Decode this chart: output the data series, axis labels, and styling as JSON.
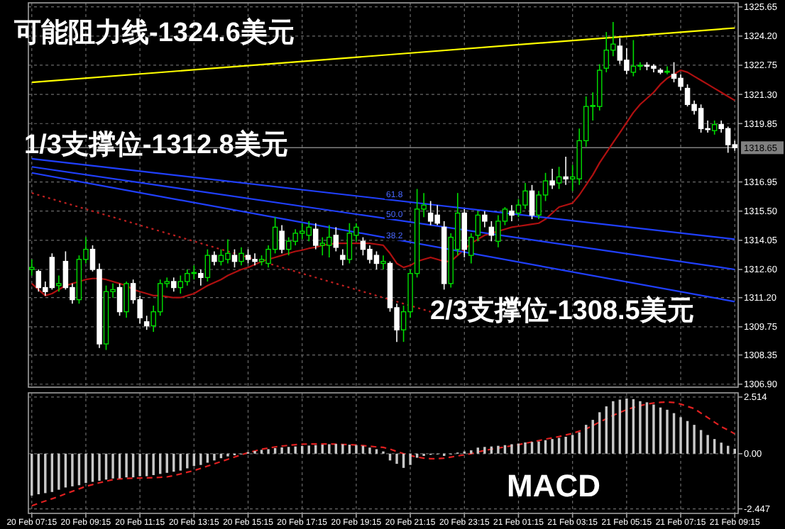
{
  "chart_data": [
    {
      "type": "candlestick",
      "tick_labels": "y",
      "grid": true,
      "colors": [
        "#00dd00",
        "#ffffff",
        "#ffffff",
        "#ffffff",
        "#00dd00",
        "#ffffff",
        "#ffffff",
        "#00dd00",
        "#00dd00",
        "#ffffff",
        "#ffffff",
        "#00dd00",
        "#00dd00",
        "#ffffff",
        "#00dd00",
        "#ffffff",
        "#ffffff",
        "#ffffff",
        "#00dd00",
        "#00dd00",
        "#00dd00",
        "#ffffff",
        "#00dd00",
        "#00dd00",
        "#00dd00",
        "#ffffff",
        "#00dd00",
        "#ffffff",
        "#00dd00",
        "#00dd00",
        "#ffffff",
        "#00dd00",
        "#ffffff",
        "#ffffff",
        "#00dd00",
        "#00dd00",
        "#00dd00",
        "#ffffff",
        "#00dd00",
        "#00dd00",
        "#00dd00",
        "#00dd00",
        "#ffffff",
        "#00dd00",
        "#00dd00",
        "#ffffff",
        "#ffffff",
        "#00dd00",
        "#00dd00",
        "#ffffff",
        "#ffffff",
        "#ffffff",
        "#00dd00",
        "#ffffff",
        "#ffffff",
        "#00dd00",
        "#00dd00",
        "#00dd00",
        "#00dd00",
        "#ffffff",
        "#ffffff",
        "#ffffff",
        "#00dd00",
        "#00dd00",
        "#ffffff",
        "#00dd00",
        "#00dd00",
        "#ffffff",
        "#ffffff",
        "#00dd00",
        "#00dd00",
        "#ffffff",
        "#00dd00",
        "#00dd00",
        "#ffffff",
        "#00dd00",
        "#00dd00",
        "#ffffff",
        "#00dd00",
        "#ffffff",
        "#00dd00",
        "#00dd00",
        "#00dd00",
        "#00dd00",
        "#00dd00",
        "#00dd00",
        "#00dd00",
        "#ffffff",
        "#ffffff",
        "#00dd00",
        "#00dd00",
        "#ffffff",
        "#ffffff",
        "#ffffff",
        "#00dd00",
        "#ffffff",
        "#ffffff",
        "#ffffff",
        "#ffffff",
        "#ffffff",
        "#ffffff",
        "#00dd00",
        "#ffffff",
        "#ffffff",
        "#ffffff"
      ],
      "categories": [
        null,
        null,
        null,
        null,
        null,
        null,
        null,
        null,
        null,
        null,
        null,
        null,
        null,
        null,
        null,
        null,
        null,
        null,
        null,
        null,
        null,
        null,
        null,
        null,
        null,
        null,
        null,
        null,
        null,
        null,
        null,
        null,
        null,
        null,
        null,
        null,
        null,
        null,
        null,
        null,
        null,
        null,
        null,
        null,
        null,
        null,
        null,
        null,
        null,
        null,
        null,
        null,
        null,
        null,
        null,
        null,
        null,
        null,
        null,
        null,
        null,
        null,
        null,
        null,
        null,
        null,
        null,
        null,
        null,
        null,
        null,
        null,
        null,
        null,
        null,
        null,
        null,
        null,
        null,
        null,
        null,
        null,
        null,
        null,
        null,
        null,
        null,
        null,
        null,
        null,
        null,
        null,
        null,
        null,
        null,
        null,
        null,
        null,
        null,
        null,
        null,
        null,
        null,
        null,
        null
      ],
      "ohlc": [
        [
          1312.6,
          1313.1,
          1312.3,
          1312.7
        ],
        [
          1312.5,
          1312.6,
          1311.5,
          1311.7
        ],
        [
          1311.7,
          1312.0,
          1311.3,
          1311.5
        ],
        [
          1313.2,
          1313.4,
          1311.6,
          1311.7
        ],
        [
          1311.8,
          1312.3,
          1311.5,
          1311.9
        ],
        [
          1313.0,
          1313.5,
          1311.6,
          1311.7
        ],
        [
          1311.7,
          1311.9,
          1310.9,
          1311.1
        ],
        [
          1311.1,
          1313.3,
          1310.9,
          1313.1
        ],
        [
          1313.1,
          1314.2,
          1312.9,
          1313.6
        ],
        [
          1313.6,
          1313.8,
          1312.5,
          1312.6
        ],
        [
          1312.6,
          1312.9,
          1308.7,
          1308.9
        ],
        [
          1308.9,
          1311.8,
          1308.6,
          1311.5
        ],
        [
          1311.5,
          1311.9,
          1311.2,
          1311.6
        ],
        [
          1311.7,
          1311.9,
          1310.3,
          1310.5
        ],
        [
          1310.5,
          1312.0,
          1310.2,
          1311.9
        ],
        [
          1311.9,
          1312.1,
          1310.9,
          1311.1
        ],
        [
          1311.1,
          1311.3,
          1309.9,
          1310.2
        ],
        [
          1310.0,
          1310.3,
          1309.6,
          1309.8
        ],
        [
          1309.8,
          1310.8,
          1309.5,
          1310.5
        ],
        [
          1310.5,
          1312.1,
          1310.3,
          1311.9
        ],
        [
          1311.9,
          1312.2,
          1311.7,
          1312.0
        ],
        [
          1312.0,
          1312.2,
          1311.5,
          1311.7
        ],
        [
          1311.7,
          1312.3,
          1311.4,
          1312.0
        ],
        [
          1312.0,
          1312.6,
          1311.8,
          1312.4
        ],
        [
          1312.4,
          1312.8,
          1312.1,
          1312.45
        ],
        [
          1312.4,
          1312.6,
          1311.8,
          1312.2
        ],
        [
          1312.2,
          1313.6,
          1312.0,
          1313.3
        ],
        [
          1313.3,
          1313.5,
          1312.8,
          1313.0
        ],
        [
          1313.0,
          1313.6,
          1312.8,
          1313.3
        ],
        [
          1313.1,
          1314.1,
          1312.9,
          1313.4
        ],
        [
          1313.3,
          1313.6,
          1312.7,
          1313.0
        ],
        [
          1313.0,
          1313.7,
          1312.8,
          1313.4
        ],
        [
          1313.3,
          1313.6,
          1312.9,
          1313.1
        ],
        [
          1313.1,
          1313.4,
          1312.8,
          1313.0
        ],
        [
          1313.0,
          1313.3,
          1312.8,
          1313.1
        ],
        [
          1312.9,
          1313.8,
          1312.7,
          1313.6
        ],
        [
          1313.6,
          1315.2,
          1313.4,
          1314.7
        ],
        [
          1314.5,
          1314.8,
          1313.4,
          1313.6
        ],
        [
          1313.6,
          1314.2,
          1313.3,
          1314.0
        ],
        [
          1314.0,
          1314.6,
          1313.8,
          1314.4
        ],
        [
          1314.4,
          1314.9,
          1314.1,
          1314.5
        ],
        [
          1314.3,
          1315.0,
          1314.0,
          1314.7
        ],
        [
          1314.6,
          1314.9,
          1313.6,
          1313.8
        ],
        [
          1313.8,
          1314.2,
          1313.3,
          1313.9
        ],
        [
          1313.8,
          1314.8,
          1313.2,
          1314.2
        ],
        [
          1314.3,
          1314.7,
          1313.5,
          1313.7
        ],
        [
          1313.3,
          1313.6,
          1312.8,
          1313.1
        ],
        [
          1313.1,
          1314.9,
          1312.9,
          1314.4
        ],
        [
          1314.3,
          1314.9,
          1314.0,
          1314.7
        ],
        [
          1314.0,
          1314.2,
          1313.3,
          1313.6
        ],
        [
          1313.6,
          1313.8,
          1312.9,
          1313.1
        ],
        [
          1313.3,
          1313.5,
          1312.6,
          1312.9
        ],
        [
          1312.9,
          1313.3,
          1312.6,
          1313.0
        ],
        [
          1312.9,
          1313.0,
          1310.5,
          1310.7
        ],
        [
          1310.7,
          1310.9,
          1309.0,
          1309.6
        ],
        [
          1309.6,
          1310.8,
          1309.0,
          1310.5
        ],
        [
          1310.5,
          1312.6,
          1310.2,
          1312.4
        ],
        [
          1312.4,
          1316.6,
          1312.2,
          1315.6
        ],
        [
          1315.6,
          1316.4,
          1315.2,
          1315.8
        ],
        [
          1315.4,
          1316.0,
          1314.8,
          1315.0
        ],
        [
          1315.3,
          1315.8,
          1314.8,
          1314.9
        ],
        [
          1314.7,
          1315.0,
          1311.6,
          1311.9
        ],
        [
          1311.9,
          1314.4,
          1311.7,
          1314.2
        ],
        [
          1313.6,
          1316.4,
          1313.3,
          1315.4
        ],
        [
          1315.4,
          1315.6,
          1313.2,
          1313.6
        ],
        [
          1313.3,
          1314.4,
          1312.9,
          1314.2
        ],
        [
          1314.3,
          1315.5,
          1314.0,
          1315.3
        ],
        [
          1315.3,
          1315.5,
          1314.7,
          1315.0
        ],
        [
          1314.7,
          1315.0,
          1314.0,
          1314.3
        ],
        [
          1314.0,
          1315.3,
          1313.7,
          1315.0
        ],
        [
          1315.0,
          1315.7,
          1314.8,
          1315.6
        ],
        [
          1315.5,
          1315.8,
          1315.0,
          1315.3
        ],
        [
          1315.4,
          1316.1,
          1315.2,
          1315.8
        ],
        [
          1315.8,
          1316.9,
          1315.6,
          1316.5
        ],
        [
          1316.5,
          1316.8,
          1315.1,
          1315.3
        ],
        [
          1315.3,
          1316.5,
          1315.1,
          1316.3
        ],
        [
          1316.3,
          1317.4,
          1316.0,
          1317.0
        ],
        [
          1317.0,
          1317.6,
          1316.6,
          1316.8
        ],
        [
          1316.9,
          1317.7,
          1316.6,
          1317.2
        ],
        [
          1317.2,
          1318.2,
          1316.8,
          1317.1
        ],
        [
          1317.1,
          1317.8,
          1316.5,
          1317.2
        ],
        [
          1317.1,
          1319.6,
          1316.8,
          1319.0
        ],
        [
          1319.0,
          1321.2,
          1318.7,
          1320.7
        ],
        [
          1320.7,
          1321.4,
          1320.0,
          1320.75
        ],
        [
          1320.7,
          1322.8,
          1320.5,
          1322.5
        ],
        [
          1322.6,
          1324.4,
          1322.4,
          1323.5
        ],
        [
          1323.5,
          1324.9,
          1323.2,
          1323.8
        ],
        [
          1323.7,
          1324.1,
          1322.8,
          1323.0
        ],
        [
          1323.0,
          1323.6,
          1322.3,
          1322.5
        ],
        [
          1322.4,
          1324.0,
          1322.2,
          1322.7
        ],
        [
          1322.7,
          1322.9,
          1322.5,
          1322.75
        ],
        [
          1322.75,
          1322.9,
          1322.5,
          1322.7
        ],
        [
          1322.7,
          1322.8,
          1322.4,
          1322.6
        ],
        [
          1322.5,
          1322.6,
          1322.3,
          1322.4
        ],
        [
          1322.4,
          1322.7,
          1322.3,
          1322.45
        ],
        [
          1322.3,
          1322.9,
          1321.9,
          1322.1
        ],
        [
          1322.1,
          1322.3,
          1321.5,
          1321.7
        ],
        [
          1321.6,
          1321.8,
          1320.7,
          1320.8
        ],
        [
          1320.8,
          1321.0,
          1320.3,
          1320.5
        ],
        [
          1320.6,
          1320.8,
          1319.4,
          1319.6
        ],
        [
          1319.6,
          1320.0,
          1319.4,
          1319.55
        ],
        [
          1319.5,
          1320.0,
          1319.3,
          1319.8
        ],
        [
          1319.8,
          1320.0,
          1319.4,
          1319.6
        ],
        [
          1319.6,
          1319.7,
          1318.4,
          1318.8
        ],
        [
          1318.8,
          1319.0,
          1318.5,
          1318.65
        ]
      ],
      "series": [
        {
          "type": "line",
          "color": "#b01010",
          "values": [
            1311.9,
            1311.6,
            1311.3,
            1311.4,
            1311.6,
            1311.8,
            1311.9,
            1312.0,
            1312.1,
            1312.15,
            1312.15,
            1312.1,
            1312.0,
            1311.9,
            1311.8,
            1311.6,
            1311.5,
            1311.4,
            1311.3,
            1311.3,
            1311.25,
            1311.2,
            1311.2,
            1311.3,
            1311.4,
            1311.6,
            1311.8,
            1311.95,
            1312.1,
            1312.3,
            1312.45,
            1312.6,
            1312.7,
            1312.85,
            1313.0,
            1313.1,
            1313.2,
            1313.3,
            1313.4,
            1313.5,
            1313.56,
            1313.65,
            1313.7,
            1313.8,
            1313.85,
            1313.9,
            1313.9,
            1313.9,
            1313.9,
            1313.9,
            1313.9,
            1313.85,
            1313.8,
            1313.4,
            1312.9,
            1312.7,
            1312.8,
            1313.0,
            1313.1,
            1313.2,
            1313.1,
            1313.0,
            1313.0,
            1313.3,
            1313.6,
            1313.9,
            1314.1,
            1314.3,
            1314.4,
            1314.5,
            1314.6,
            1314.7,
            1314.75,
            1314.8,
            1314.85,
            1314.9,
            1315.1,
            1315.4,
            1315.7,
            1315.8,
            1315.9,
            1316.3,
            1316.8,
            1317.3,
            1317.9,
            1318.4,
            1318.9,
            1319.4,
            1319.9,
            1320.4,
            1320.8,
            1321.1,
            1321.4,
            1321.8,
            1322.1,
            1322.3,
            1322.5,
            1322.4,
            1322.2,
            1322.0,
            1321.8,
            1321.6,
            1321.4,
            1321.2,
            1321.0
          ]
        },
        {
          "type": "line",
          "color": "#ffff00",
          "values": [
            1321.9,
            null,
            null,
            null,
            null,
            null,
            null,
            null,
            null,
            null,
            null,
            null,
            null,
            null,
            null,
            null,
            null,
            null,
            null,
            null,
            null,
            null,
            null,
            null,
            null,
            null,
            null,
            null,
            null,
            null,
            null,
            null,
            null,
            null,
            null,
            null,
            null,
            null,
            null,
            null,
            null,
            null,
            null,
            null,
            null,
            null,
            null,
            null,
            null,
            null,
            null,
            null,
            null,
            null,
            null,
            null,
            null,
            null,
            null,
            null,
            null,
            null,
            null,
            null,
            null,
            null,
            null,
            null,
            null,
            null,
            null,
            null,
            null,
            null,
            null,
            null,
            null,
            null,
            null,
            null,
            null,
            null,
            null,
            null,
            null,
            null,
            null,
            null,
            null,
            null,
            null,
            null,
            null,
            null,
            null,
            null,
            null,
            null,
            null,
            null,
            null,
            null,
            null,
            null,
            1324.6
          ]
        },
        {
          "type": "line",
          "color": "#2040ff",
          "values": [
            1318.1,
            null,
            null,
            null,
            null,
            null,
            null,
            null,
            null,
            null,
            null,
            null,
            null,
            null,
            null,
            null,
            null,
            null,
            null,
            null,
            null,
            null,
            null,
            null,
            null,
            null,
            null,
            null,
            null,
            null,
            null,
            null,
            null,
            null,
            null,
            null,
            null,
            null,
            null,
            null,
            null,
            null,
            null,
            null,
            null,
            null,
            null,
            null,
            null,
            null,
            null,
            null,
            null,
            null,
            null,
            null,
            null,
            null,
            null,
            null,
            null,
            null,
            null,
            null,
            null,
            null,
            null,
            null,
            null,
            null,
            null,
            null,
            null,
            null,
            null,
            null,
            null,
            null,
            null,
            null,
            null,
            null,
            null,
            null,
            null,
            null,
            null,
            null,
            null,
            null,
            null,
            null,
            null,
            null,
            null,
            null,
            null,
            null,
            null,
            null,
            null,
            null,
            null,
            null,
            1314.1
          ]
        },
        {
          "type": "line",
          "color": "#2040ff",
          "values": [
            1317.7,
            null,
            null,
            null,
            null,
            null,
            null,
            null,
            null,
            null,
            null,
            null,
            null,
            null,
            null,
            null,
            null,
            null,
            null,
            null,
            null,
            null,
            null,
            null,
            null,
            null,
            null,
            null,
            null,
            null,
            null,
            null,
            null,
            null,
            null,
            null,
            null,
            null,
            null,
            null,
            null,
            null,
            null,
            null,
            null,
            null,
            null,
            null,
            null,
            null,
            null,
            null,
            null,
            null,
            null,
            null,
            null,
            null,
            null,
            null,
            null,
            null,
            null,
            null,
            null,
            null,
            null,
            null,
            null,
            null,
            null,
            null,
            null,
            null,
            null,
            null,
            null,
            null,
            null,
            null,
            null,
            null,
            null,
            null,
            null,
            null,
            null,
            null,
            null,
            null,
            null,
            null,
            null,
            null,
            null,
            null,
            null,
            null,
            null,
            null,
            null,
            null,
            null,
            null,
            1312.6
          ]
        },
        {
          "type": "line",
          "color": "#2040ff",
          "values": [
            1317.4,
            null,
            null,
            null,
            null,
            null,
            null,
            null,
            null,
            null,
            null,
            null,
            null,
            null,
            null,
            null,
            null,
            null,
            null,
            null,
            null,
            null,
            null,
            null,
            null,
            null,
            null,
            null,
            null,
            null,
            null,
            null,
            null,
            null,
            null,
            null,
            null,
            null,
            null,
            null,
            null,
            null,
            null,
            null,
            null,
            null,
            null,
            null,
            null,
            null,
            null,
            null,
            null,
            null,
            null,
            null,
            null,
            null,
            null,
            null,
            null,
            null,
            null,
            null,
            null,
            null,
            null,
            null,
            null,
            null,
            null,
            null,
            null,
            null,
            null,
            null,
            null,
            null,
            null,
            null,
            null,
            null,
            null,
            null,
            null,
            null,
            null,
            null,
            null,
            null,
            null,
            null,
            null,
            null,
            null,
            null,
            null,
            null,
            null,
            null,
            null,
            null,
            null,
            null,
            1311.0
          ]
        },
        {
          "type": "line",
          "color": "#c02020",
          "line_style": "dotted",
          "values": [
            1316.4,
            null,
            null,
            null,
            null,
            null,
            null,
            null,
            null,
            null,
            null,
            null,
            null,
            null,
            null,
            null,
            null,
            null,
            null,
            null,
            null,
            null,
            null,
            null,
            null,
            null,
            null,
            null,
            null,
            null,
            null,
            null,
            null,
            null,
            null,
            null,
            null,
            null,
            null,
            null,
            null,
            null,
            null,
            null,
            null,
            null,
            null,
            null,
            null,
            null,
            null,
            null,
            null,
            null,
            null,
            null,
            null,
            null,
            null,
            1310.5,
            null,
            null,
            null,
            null,
            null,
            null,
            null,
            null,
            null,
            null,
            null,
            null,
            null,
            null,
            null,
            null,
            null,
            null,
            null,
            null,
            null,
            null,
            null,
            null,
            null,
            null,
            null,
            null,
            null,
            null,
            null,
            null,
            null,
            null,
            null,
            null,
            null,
            null,
            null,
            null,
            null,
            null,
            null,
            null,
            null
          ]
        }
      ],
      "ylim": [
        1306.75,
        1325.85
      ],
      "yticks": [
        1325.65,
        {
          "value": 1324.2,
          "label": "1324.20"
        },
        1322.75,
        {
          "value": 1321.3,
          "label": "1321.30"
        },
        1319.85,
        1316.95,
        {
          "value": 1315.5,
          "label": "1315.50"
        },
        1314.05,
        {
          "value": 1312.6,
          "label": "1312.60"
        },
        {
          "value": 1311.2,
          "label": "1311.20"
        },
        1309.75,
        1308.35,
        {
          "value": 1306.9,
          "label": "1306.90"
        }
      ],
      "ref_lines": [
        {
          "axis": "y",
          "value": 1318.65,
          "label": "1318.65",
          "color": "#808080"
        }
      ],
      "annotations": [
        "可能阻力线-1324.6美元",
        "1/3支撑位-1312.8美元",
        "2/3支撑位-1308.5美元",
        "61.8",
        "50.0",
        "38.2"
      ]
    },
    {
      "type": "bar",
      "title": "MACD",
      "grid": true,
      "categories": [
        "20 Feb 07:15",
        null,
        null,
        null,
        null,
        null,
        null,
        null,
        "20 Feb 09:15",
        null,
        null,
        null,
        null,
        null,
        null,
        null,
        "20 Feb 11:15",
        null,
        null,
        null,
        null,
        null,
        null,
        null,
        "20 Feb 13:15",
        null,
        null,
        null,
        null,
        null,
        null,
        null,
        "20 Feb 15:15",
        null,
        null,
        null,
        null,
        null,
        null,
        null,
        "20 Feb 17:15",
        null,
        null,
        null,
        null,
        null,
        null,
        null,
        "20 Feb 19:15",
        null,
        null,
        null,
        null,
        null,
        null,
        null,
        "20 Feb 21:15",
        null,
        null,
        null,
        null,
        null,
        null,
        null,
        "20 Feb 23:15",
        null,
        null,
        null,
        null,
        null,
        null,
        null,
        "21 Feb 01:15",
        null,
        null,
        null,
        null,
        null,
        null,
        null,
        "21 Feb 03:15",
        null,
        null,
        null,
        null,
        null,
        null,
        null,
        "21 Feb 05:15",
        null,
        null,
        null,
        null,
        null,
        null,
        null,
        "21 Feb 07:15",
        null,
        null,
        null,
        null,
        null,
        null,
        null,
        "21 Feb 09:15"
      ],
      "series": [
        {
          "type": "bar",
          "color": "#c8c8c8",
          "values": [
            -1.86,
            -1.8,
            -1.75,
            -1.7,
            -1.6,
            -1.5,
            -1.45,
            -1.4,
            -1.3,
            -1.25,
            -1.2,
            -1.15,
            -1.1,
            -1.1,
            -1.05,
            -1.05,
            -1.0,
            -1.0,
            -0.95,
            -0.9,
            -0.85,
            -0.8,
            -0.75,
            -0.65,
            -0.55,
            -0.5,
            -0.4,
            -0.3,
            -0.2,
            -0.12,
            -0.07,
            0.0,
            0.07,
            0.12,
            0.17,
            0.2,
            0.25,
            0.28,
            0.3,
            0.32,
            0.34,
            0.36,
            0.38,
            0.4,
            0.42,
            0.43,
            0.42,
            0.4,
            0.38,
            0.35,
            0.27,
            0.2,
            0.1,
            -0.3,
            -0.45,
            -0.63,
            -0.5,
            -0.18,
            -0.1,
            -0.05,
            -0.02,
            -0.1,
            0.0,
            0.05,
            0.1,
            0.15,
            0.27,
            0.3,
            0.32,
            0.35,
            0.38,
            0.42,
            0.45,
            0.5,
            0.52,
            0.54,
            0.6,
            0.65,
            0.7,
            0.75,
            0.83,
            0.95,
            1.28,
            1.5,
            1.84,
            2.1,
            2.33,
            2.4,
            2.45,
            2.42,
            2.33,
            2.28,
            2.18,
            2.05,
            1.95,
            1.8,
            1.62,
            1.45,
            1.28,
            1.05,
            0.83,
            0.65,
            0.49,
            0.35,
            0.22
          ]
        },
        {
          "type": "line",
          "color": "#e02020",
          "line_style": "dashed",
          "values": [
            -2.31,
            -2.2,
            -2.1,
            -2.0,
            -1.9,
            -1.78,
            -1.67,
            -1.56,
            -1.45,
            -1.37,
            -1.29,
            -1.22,
            -1.15,
            -1.12,
            -1.1,
            -1.09,
            -1.08,
            -1.07,
            -1.06,
            -1.05,
            -1.03,
            -0.97,
            -0.9,
            -0.82,
            -0.75,
            -0.65,
            -0.55,
            -0.45,
            -0.35,
            -0.25,
            -0.15,
            -0.05,
            0.05,
            0.12,
            0.2,
            0.25,
            0.3,
            0.34,
            0.37,
            0.4,
            0.42,
            0.43,
            0.43,
            0.43,
            0.43,
            0.42,
            0.41,
            0.4,
            0.38,
            0.36,
            0.33,
            0.3,
            0.28,
            0.2,
            0.1,
            0.0,
            -0.08,
            -0.15,
            -0.2,
            -0.22,
            -0.22,
            -0.2,
            -0.15,
            -0.1,
            -0.05,
            0.0,
            0.08,
            0.14,
            0.2,
            0.25,
            0.3,
            0.35,
            0.4,
            0.46,
            0.52,
            0.58,
            0.65,
            0.7,
            0.76,
            0.83,
            0.9,
            1.0,
            1.1,
            1.25,
            1.4,
            1.55,
            1.7,
            1.83,
            1.95,
            2.05,
            2.13,
            2.2,
            2.25,
            2.28,
            2.29,
            2.27,
            2.2,
            2.1,
            2.0,
            1.8,
            1.6,
            1.4,
            1.2,
            1.05,
            0.88
          ]
        }
      ],
      "ylim": [
        -2.65,
        2.7
      ],
      "yticks": [
        2.514,
        {
          "value": 0,
          "label": "0.00"
        },
        -2.447
      ]
    }
  ]
}
